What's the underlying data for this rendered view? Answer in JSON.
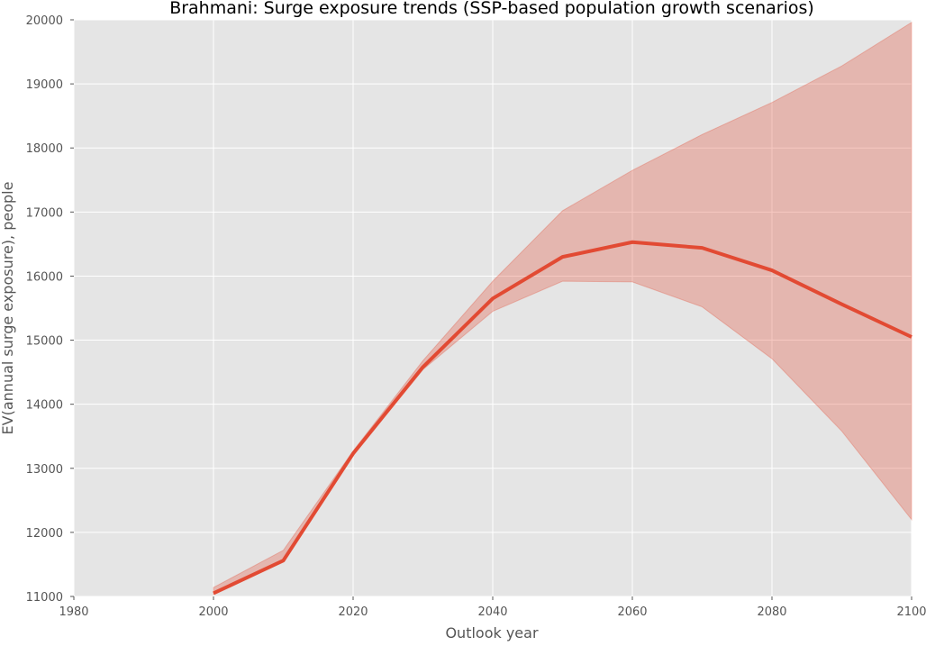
{
  "chart_data": {
    "type": "line",
    "title": "Brahmani: Surge exposure trends (SSP-based population growth scenarios)",
    "xlabel": "Outlook year",
    "ylabel": "EV(annual surge exposure), people",
    "xlim": [
      1980,
      2100
    ],
    "ylim": [
      11000,
      20000
    ],
    "xticks": [
      1980,
      2000,
      2020,
      2040,
      2060,
      2080,
      2100
    ],
    "yticks": [
      11000,
      12000,
      13000,
      14000,
      15000,
      16000,
      17000,
      18000,
      19000,
      20000
    ],
    "grid": true,
    "x": [
      2000,
      2010,
      2020,
      2030,
      2040,
      2050,
      2060,
      2070,
      2080,
      2090,
      2100
    ],
    "series": [
      {
        "values": [
          11050,
          11560,
          13230,
          14580,
          15650,
          16300,
          16530,
          16440,
          16090,
          15560,
          15050
        ],
        "color": "#e24a33"
      }
    ],
    "band": {
      "lower": [
        11030,
        11570,
        13200,
        14540,
        15450,
        15920,
        15910,
        15520,
        14710,
        13580,
        12200
      ],
      "upper": [
        11140,
        11720,
        13270,
        14680,
        15920,
        17020,
        17650,
        18210,
        18710,
        19280,
        19960
      ],
      "color": "#e24a33"
    },
    "colors": {
      "plot_background": "#e5e5e5",
      "grid": "#ffffff",
      "line": "#e24a33"
    }
  }
}
